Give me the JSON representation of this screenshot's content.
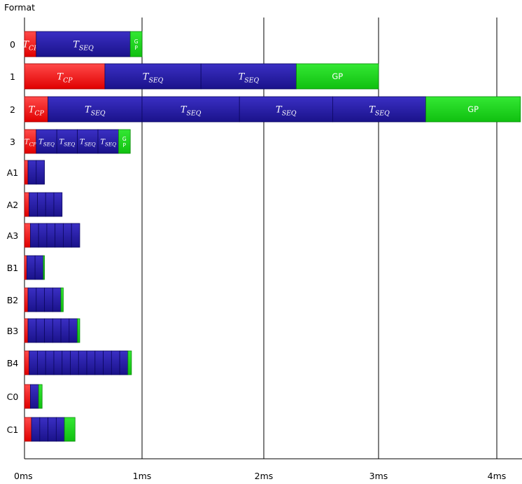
{
  "axis_title": "Format",
  "colors": {
    "cp": "#ff2020",
    "seq": "#2b1fa8",
    "gp": "#1ed81e",
    "grid": "#000000"
  },
  "x_ticks": [
    "0ms",
    "1ms",
    "2ms",
    "3ms",
    "4ms"
  ],
  "rows": [
    {
      "label": "0",
      "segments": [
        {
          "type": "cp",
          "dur": 0.1
        },
        {
          "type": "seq",
          "dur": 0.8,
          "text": "SEQ"
        },
        {
          "type": "gp",
          "dur": 0.1,
          "text": "GP"
        }
      ]
    },
    {
      "label": "1",
      "segments": [
        {
          "type": "cp",
          "dur": 0.684
        },
        {
          "type": "seq",
          "dur": 0.8,
          "text": "SEQ"
        },
        {
          "type": "seq",
          "dur": 0.8,
          "text": "SEQ"
        },
        {
          "type": "gp",
          "dur": 0.716,
          "text": "GP"
        }
      ]
    },
    {
      "label": "2",
      "segments": [
        {
          "type": "cp",
          "dur": 0.2
        },
        {
          "type": "seq",
          "dur": 0.8,
          "text": "SEQ"
        },
        {
          "type": "seq",
          "dur": 0.8,
          "text": "SEQ"
        },
        {
          "type": "seq",
          "dur": 0.8,
          "text": "SEQ"
        },
        {
          "type": "seq",
          "dur": 0.8,
          "text": "SEQ"
        },
        {
          "type": "gp",
          "dur": 0.8,
          "text": "GP"
        }
      ]
    },
    {
      "label": "3",
      "segments": [
        {
          "type": "cp",
          "dur": 0.1
        },
        {
          "type": "seq",
          "dur": 0.175,
          "text": "SEQ"
        },
        {
          "type": "seq",
          "dur": 0.175,
          "text": "SEQ"
        },
        {
          "type": "seq",
          "dur": 0.175,
          "text": "SEQ"
        },
        {
          "type": "seq",
          "dur": 0.175,
          "text": "SEQ"
        },
        {
          "type": "gp",
          "dur": 0.1,
          "text": "GP"
        }
      ]
    },
    {
      "label": "A1",
      "cp": 0.03,
      "seq_count": 2,
      "seq_dur": 0.07,
      "gp": 0
    },
    {
      "label": "A2",
      "cp": 0.04,
      "seq_count": 4,
      "seq_dur": 0.07,
      "gp": 0
    },
    {
      "label": "A3",
      "cp": 0.05,
      "seq_count": 6,
      "seq_dur": 0.07,
      "gp": 0
    },
    {
      "label": "B1",
      "cp": 0.02,
      "seq_count": 2,
      "seq_dur": 0.07,
      "gp": 0.01
    },
    {
      "label": "B2",
      "cp": 0.03,
      "seq_count": 4,
      "seq_dur": 0.07,
      "gp": 0.02
    },
    {
      "label": "B3",
      "cp": 0.03,
      "seq_count": 6,
      "seq_dur": 0.07,
      "gp": 0.02
    },
    {
      "label": "B4",
      "cp": 0.04,
      "seq_count": 12,
      "seq_dur": 0.07,
      "gp": 0.03
    },
    {
      "label": "C0",
      "cp": 0.05,
      "seq_count": 1,
      "seq_dur": 0.07,
      "gp": 0.03
    },
    {
      "label": "C1",
      "cp": 0.06,
      "seq_count": 4,
      "seq_dur": 0.07,
      "gp": 0.09
    }
  ]
}
